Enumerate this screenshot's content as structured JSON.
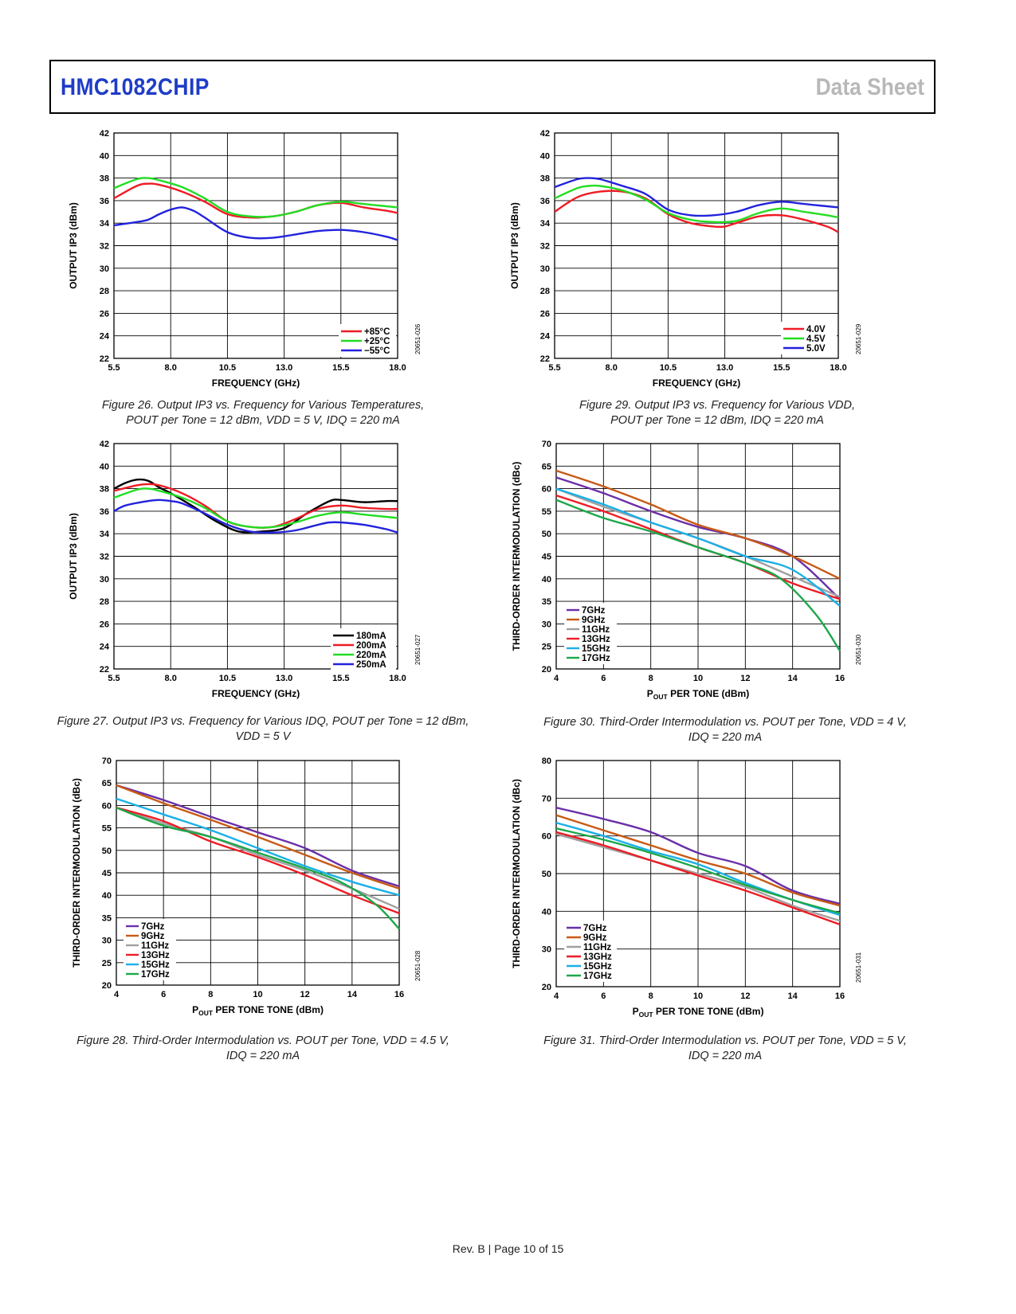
{
  "header": {
    "title": "HMC1082CHIP",
    "section": "Data Sheet"
  },
  "footer": {
    "text": "Rev. B | Page 10 of 15"
  },
  "figures": [
    {
      "caption_line1": "Figure 26. Output IP3 vs. Frequency for Various Temperatures,",
      "caption_line2": "POUT per Tone = 12 dBm, VDD = 5 V, IDQ = 220 mA",
      "figure_id": "20651-026"
    },
    {
      "caption_line1": "Figure 27. Output IP3 vs. Frequency for Various IDQ, POUT per Tone = 12 dBm,",
      "caption_line2": "VDD = 5 V",
      "figure_id": "20651-027"
    },
    {
      "caption_line1": "Figure 28. Third-Order Intermodulation vs. POUT per Tone, VDD = 4.5 V,",
      "caption_line2": "IDQ = 220 mA",
      "figure_id": "20651-028"
    },
    {
      "caption_line1": "Figure 29. Output IP3 vs. Frequency for Various VDD,",
      "caption_line2": "POUT per Tone = 12 dBm, IDQ = 220 mA",
      "figure_id": "20651-029"
    },
    {
      "caption_line1": "Figure 30. Third-Order Intermodulation vs. POUT per Tone, VDD = 4 V,",
      "caption_line2": "IDQ = 220 mA",
      "figure_id": "20651-030"
    },
    {
      "caption_line1": "Figure 31. Third-Order Intermodulation vs. POUT per Tone, VDD = 5 V,",
      "caption_line2": "IDQ = 220 mA",
      "figure_id": "20651-031"
    }
  ],
  "chart_data": [
    {
      "id": "fig26",
      "type": "line",
      "xlabel": "FREQUENCY (GHz)",
      "ylabel": "OUTPUT IP3 (dBm)",
      "xlim": [
        5.5,
        18.0
      ],
      "ylim": [
        22,
        42
      ],
      "xticks": [
        5.5,
        8.0,
        10.5,
        13.0,
        15.5,
        18.0
      ],
      "xtick_labels": [
        "5.5",
        "8.0",
        "10.5",
        "13.0",
        "15.5",
        "18.0"
      ],
      "yticks": [
        22,
        24,
        26,
        28,
        30,
        32,
        34,
        36,
        38,
        40,
        42
      ],
      "grid": true,
      "legend": "bottom-right",
      "series": [
        {
          "name": "+85°C",
          "color": "#ee1c25",
          "x": [
            5.5,
            6.5,
            7.0,
            7.5,
            8.5,
            9.5,
            10.5,
            11.5,
            12.5,
            13.5,
            14.5,
            15.5,
            16.5,
            17.5,
            18.0
          ],
          "values": [
            36.2,
            37.3,
            37.5,
            37.4,
            36.8,
            35.9,
            34.8,
            34.5,
            34.6,
            35.0,
            35.6,
            35.8,
            35.4,
            35.1,
            34.9
          ]
        },
        {
          "name": "+25°C",
          "color": "#22dd22",
          "x": [
            5.5,
            6.5,
            7.0,
            7.5,
            8.5,
            9.5,
            10.5,
            11.5,
            12.5,
            13.5,
            14.5,
            15.5,
            16.5,
            17.5,
            18.0
          ],
          "values": [
            37.1,
            37.9,
            38.0,
            37.8,
            37.2,
            36.2,
            35.0,
            34.6,
            34.6,
            35.0,
            35.6,
            35.9,
            35.7,
            35.5,
            35.4
          ]
        },
        {
          "name": "−55°C",
          "color": "#2222dd",
          "x": [
            5.5,
            6.5,
            7.0,
            7.5,
            8.0,
            8.5,
            9.0,
            9.5,
            10.5,
            11.5,
            12.5,
            13.5,
            14.5,
            15.5,
            16.5,
            17.5,
            18.0
          ],
          "values": [
            33.8,
            34.1,
            34.3,
            34.8,
            35.2,
            35.4,
            35.1,
            34.5,
            33.2,
            32.7,
            32.7,
            33.0,
            33.3,
            33.4,
            33.2,
            32.8,
            32.5
          ]
        }
      ]
    },
    {
      "id": "fig27",
      "type": "line",
      "xlabel": "FREQUENCY (GHz)",
      "ylabel": "OUTPUT IP3 (dBm)",
      "xlim": [
        5.5,
        18.0
      ],
      "ylim": [
        22,
        42
      ],
      "xticks": [
        5.5,
        8.0,
        10.5,
        13.0,
        15.5,
        18.0
      ],
      "xtick_labels": [
        "5.5",
        "8.0",
        "10.5",
        "13.0",
        "15.5",
        "18.0"
      ],
      "yticks": [
        22,
        24,
        26,
        28,
        30,
        32,
        34,
        36,
        38,
        40,
        42
      ],
      "grid": true,
      "legend": "bottom-right",
      "series": [
        {
          "name": "180mA",
          "color": "#000000",
          "x": [
            5.5,
            6.0,
            6.5,
            7.0,
            7.5,
            8.0,
            9.0,
            10.0,
            11.0,
            12.0,
            13.0,
            14.0,
            15.0,
            15.5,
            16.5,
            17.5,
            18.0
          ],
          "values": [
            38.0,
            38.5,
            38.8,
            38.7,
            38.1,
            37.6,
            36.4,
            35.1,
            34.2,
            34.2,
            34.5,
            35.8,
            36.9,
            37.0,
            36.8,
            36.9,
            36.9
          ]
        },
        {
          "name": "200mA",
          "color": "#ee1c25",
          "x": [
            5.5,
            6.5,
            7.0,
            7.5,
            8.5,
            9.5,
            10.5,
            11.5,
            12.5,
            13.5,
            14.5,
            15.5,
            16.5,
            17.5,
            18.0
          ],
          "values": [
            37.8,
            38.3,
            38.4,
            38.3,
            37.6,
            36.5,
            35.1,
            34.6,
            34.6,
            35.3,
            36.2,
            36.5,
            36.3,
            36.2,
            36.2
          ]
        },
        {
          "name": "220mA",
          "color": "#22dd22",
          "x": [
            5.5,
            6.5,
            7.0,
            7.5,
            8.5,
            9.5,
            10.5,
            11.5,
            12.5,
            13.5,
            14.5,
            15.5,
            16.5,
            17.5,
            18.0
          ],
          "values": [
            37.2,
            37.9,
            38.0,
            37.8,
            37.2,
            36.3,
            35.1,
            34.6,
            34.6,
            35.0,
            35.6,
            35.9,
            35.7,
            35.5,
            35.4
          ]
        },
        {
          "name": "250mA",
          "color": "#2222dd",
          "x": [
            5.5,
            6.0,
            7.0,
            7.5,
            8.0,
            8.5,
            9.5,
            10.5,
            11.5,
            12.5,
            13.5,
            14.5,
            15.0,
            15.5,
            16.5,
            17.5,
            18.0
          ],
          "values": [
            36.0,
            36.5,
            36.9,
            37.0,
            36.9,
            36.7,
            35.8,
            34.8,
            34.2,
            34.1,
            34.3,
            34.8,
            35.0,
            35.0,
            34.8,
            34.4,
            34.1
          ]
        }
      ]
    },
    {
      "id": "fig28",
      "type": "line",
      "xlabel": "POUT PER TONE TONE (dBm)",
      "ylabel": "THIRD-ORDER INTERMODULATION (dBc)",
      "xlim": [
        4,
        16
      ],
      "ylim": [
        20,
        70
      ],
      "xticks": [
        4,
        6,
        8,
        10,
        12,
        14,
        16
      ],
      "xtick_labels": [
        "4",
        "6",
        "8",
        "10",
        "12",
        "14",
        "16"
      ],
      "yticks": [
        20,
        25,
        30,
        35,
        40,
        45,
        50,
        55,
        60,
        65,
        70
      ],
      "grid": true,
      "legend": "bottom-left",
      "series": [
        {
          "name": "7GHz",
          "color": "#6a2fa8",
          "x": [
            4,
            6,
            8,
            10,
            12,
            14,
            16
          ],
          "values": [
            64.5,
            61.2,
            57.5,
            54.0,
            50.5,
            45.5,
            42.0
          ]
        },
        {
          "name": "9GHz",
          "color": "#c85a14",
          "x": [
            4,
            6,
            8,
            10,
            12,
            14,
            16
          ],
          "values": [
            64.5,
            60.5,
            56.8,
            53.0,
            49.0,
            45.0,
            41.5
          ]
        },
        {
          "name": "11GHz",
          "color": "#a0a0a0",
          "x": [
            4,
            6,
            8,
            10,
            12,
            14,
            16
          ],
          "values": [
            59.5,
            56.0,
            53.0,
            49.0,
            45.5,
            41.5,
            37.0
          ]
        },
        {
          "name": "13GHz",
          "color": "#ee1c25",
          "x": [
            4,
            6,
            8,
            10,
            12,
            14,
            16
          ],
          "values": [
            59.5,
            56.5,
            52.0,
            48.5,
            44.5,
            40.0,
            36.0
          ]
        },
        {
          "name": "15GHz",
          "color": "#1ab0e8",
          "x": [
            4,
            6,
            8,
            10,
            12,
            14,
            16
          ],
          "values": [
            61.5,
            58.0,
            54.5,
            50.5,
            46.5,
            43.0,
            40.0
          ]
        },
        {
          "name": "17GHz",
          "color": "#1ca84a",
          "x": [
            4,
            6,
            8,
            10,
            12,
            13.5,
            15,
            16
          ],
          "values": [
            59.5,
            55.5,
            53.0,
            49.5,
            46.0,
            43.0,
            38.0,
            32.5
          ]
        }
      ]
    },
    {
      "id": "fig29",
      "type": "line",
      "xlabel": "FREQUENCY (GHz)",
      "ylabel": "OUTPUT IP3 (dBm)",
      "xlim": [
        5.5,
        18.0
      ],
      "ylim": [
        22,
        42
      ],
      "xticks": [
        5.5,
        8.0,
        10.5,
        13.0,
        15.5,
        18.0
      ],
      "xtick_labels": [
        "5.5",
        "8.0",
        "10.5",
        "13.0",
        "15.5",
        "18.0"
      ],
      "yticks": [
        22,
        24,
        26,
        28,
        30,
        32,
        34,
        36,
        38,
        40,
        42
      ],
      "grid": true,
      "legend": "bottom-right",
      "series": [
        {
          "name": "4.0V",
          "color": "#ee1c25",
          "x": [
            5.5,
            6.5,
            7.5,
            8.5,
            9.5,
            10.5,
            11.5,
            12.5,
            13.0,
            13.5,
            14.5,
            15.5,
            16.5,
            17.5,
            18.0
          ],
          "values": [
            35.0,
            36.3,
            36.8,
            36.8,
            36.2,
            34.8,
            34.0,
            33.7,
            33.7,
            34.0,
            34.6,
            34.7,
            34.3,
            33.7,
            33.2
          ]
        },
        {
          "name": "4.5V",
          "color": "#22dd22",
          "x": [
            5.5,
            6.5,
            7.0,
            7.5,
            8.5,
            9.5,
            10.5,
            11.5,
            12.5,
            13.5,
            14.5,
            15.5,
            16.5,
            17.5,
            18.0
          ],
          "values": [
            36.2,
            37.1,
            37.3,
            37.3,
            36.9,
            36.1,
            34.9,
            34.3,
            34.1,
            34.2,
            34.9,
            35.3,
            35.0,
            34.7,
            34.5
          ]
        },
        {
          "name": "5.0V",
          "color": "#2222dd",
          "x": [
            5.5,
            6.5,
            7.0,
            7.5,
            8.5,
            9.5,
            10.5,
            11.5,
            12.5,
            13.5,
            14.5,
            15.5,
            16.5,
            17.5,
            18.0
          ],
          "values": [
            37.2,
            37.9,
            38.0,
            37.9,
            37.3,
            36.6,
            35.2,
            34.7,
            34.7,
            35.0,
            35.6,
            35.9,
            35.7,
            35.5,
            35.4
          ]
        }
      ]
    },
    {
      "id": "fig30",
      "type": "line",
      "xlabel": "POUT PER TONE (dBm)",
      "ylabel": "THIRD-ORDER INTERMODULATION (dBc)",
      "xlim": [
        4,
        16
      ],
      "ylim": [
        20,
        70
      ],
      "xticks": [
        4,
        6,
        8,
        10,
        12,
        14,
        16
      ],
      "xtick_labels": [
        "4",
        "6",
        "8",
        "10",
        "12",
        "14",
        "16"
      ],
      "yticks": [
        20,
        25,
        30,
        35,
        40,
        45,
        50,
        55,
        60,
        65,
        70
      ],
      "grid": true,
      "legend": "bottom-left",
      "series": [
        {
          "name": "7GHz",
          "color": "#6a2fa8",
          "x": [
            4,
            6,
            8,
            10,
            12,
            14,
            16
          ],
          "values": [
            62.5,
            59.0,
            55.0,
            51.5,
            49.0,
            45.0,
            35.5
          ]
        },
        {
          "name": "9GHz",
          "color": "#c85a14",
          "x": [
            4,
            6,
            8,
            10,
            12,
            14,
            16
          ],
          "values": [
            64.0,
            60.5,
            56.5,
            52.0,
            49.0,
            45.0,
            40.0
          ]
        },
        {
          "name": "11GHz",
          "color": "#a0a0a0",
          "x": [
            4,
            6,
            8,
            10,
            12,
            14,
            16
          ],
          "values": [
            60.0,
            56.0,
            52.5,
            49.0,
            45.0,
            40.5,
            36.0
          ]
        },
        {
          "name": "13GHz",
          "color": "#ee1c25",
          "x": [
            4,
            6,
            8,
            10,
            12,
            14,
            16
          ],
          "values": [
            58.5,
            55.0,
            51.0,
            47.0,
            43.5,
            39.0,
            35.5
          ]
        },
        {
          "name": "15GHz",
          "color": "#1ab0e8",
          "x": [
            4,
            6,
            8,
            10,
            12,
            14,
            16
          ],
          "values": [
            60.0,
            56.5,
            52.5,
            49.0,
            45.0,
            42.0,
            34.0
          ]
        },
        {
          "name": "17GHz",
          "color": "#1ca84a",
          "x": [
            4,
            6,
            8,
            10,
            12,
            13.5,
            15,
            16
          ],
          "values": [
            57.5,
            53.5,
            50.5,
            47.0,
            43.5,
            40.0,
            32.0,
            24.0
          ]
        }
      ]
    },
    {
      "id": "fig31",
      "type": "line",
      "xlabel": "POUT PER TONE TONE (dBm)",
      "ylabel": "THIRD-ORDER INTERMODULATION (dBc)",
      "xlim": [
        4,
        16
      ],
      "ylim": [
        20,
        80
      ],
      "xticks": [
        4,
        6,
        8,
        10,
        12,
        14,
        16
      ],
      "xtick_labels": [
        "4",
        "6",
        "8",
        "10",
        "12",
        "14",
        "16"
      ],
      "yticks": [
        20,
        30,
        40,
        50,
        60,
        70,
        80
      ],
      "grid": true,
      "legend": "bottom-left",
      "series": [
        {
          "name": "7GHz",
          "color": "#6a2fa8",
          "x": [
            4,
            6,
            8,
            10,
            12,
            14,
            16
          ],
          "values": [
            67.5,
            64.5,
            61.0,
            55.5,
            52.0,
            45.5,
            42.0
          ]
        },
        {
          "name": "9GHz",
          "color": "#c85a14",
          "x": [
            4,
            6,
            8,
            10,
            12,
            14,
            16
          ],
          "values": [
            65.5,
            61.5,
            57.5,
            53.5,
            50.0,
            45.0,
            41.5
          ]
        },
        {
          "name": "11GHz",
          "color": "#a0a0a0",
          "x": [
            4,
            6,
            8,
            10,
            12,
            14,
            16
          ],
          "values": [
            60.5,
            57.0,
            53.5,
            50.0,
            46.5,
            41.5,
            37.5
          ]
        },
        {
          "name": "13GHz",
          "color": "#ee1c25",
          "x": [
            4,
            6,
            8,
            10,
            12,
            14,
            16
          ],
          "values": [
            61.0,
            57.5,
            53.5,
            49.5,
            45.5,
            41.0,
            36.5
          ]
        },
        {
          "name": "15GHz",
          "color": "#1ab0e8",
          "x": [
            4,
            6,
            8,
            10,
            12,
            14,
            16
          ],
          "values": [
            63.5,
            60.0,
            56.0,
            52.5,
            47.5,
            43.0,
            39.0
          ]
        },
        {
          "name": "17GHz",
          "color": "#1ca84a",
          "x": [
            4,
            6,
            8,
            10,
            12,
            14,
            16
          ],
          "values": [
            62.0,
            59.0,
            55.5,
            51.5,
            47.0,
            43.0,
            39.5
          ]
        }
      ]
    }
  ]
}
